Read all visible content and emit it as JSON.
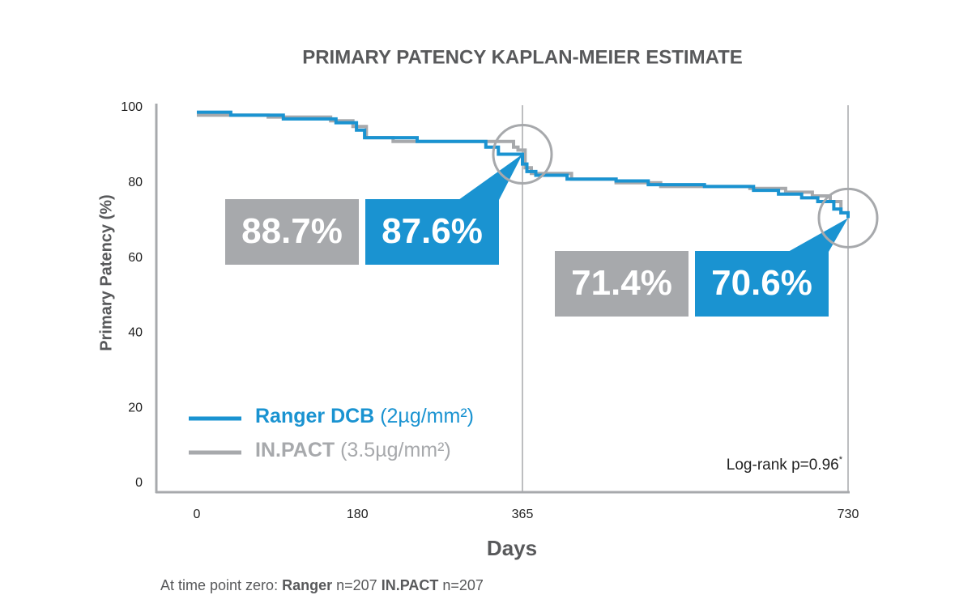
{
  "chart_data": {
    "type": "line",
    "step": true,
    "title": "PRIMARY PATENCY KAPLAN-MEIER ESTIMATE",
    "ylabel": "Primary Patency (%)",
    "xlabel": "Days",
    "xlim": [
      0,
      730
    ],
    "xticks": [
      0,
      180,
      365,
      730
    ],
    "ylim": [
      0,
      100
    ],
    "yticks": [
      0,
      20,
      40,
      60,
      80,
      100
    ],
    "series": [
      {
        "name": "IN.PACT",
        "dose": "(3.5µg/mm²)",
        "color": "#a7a9ac",
        "x": [
          0,
          80,
          80,
          150,
          150,
          175,
          175,
          190,
          190,
          220,
          220,
          355,
          355,
          360,
          360,
          368,
          368,
          375,
          375,
          420,
          420,
          470,
          470,
          520,
          520,
          620,
          620,
          660,
          660,
          690,
          690,
          710,
          710,
          722,
          722,
          730,
          730
        ],
        "values": [
          98,
          98,
          97.5,
          97.5,
          96.5,
          96.5,
          95,
          95,
          92,
          92,
          91,
          91,
          89.5,
          89.5,
          88.7,
          88.7,
          84,
          84,
          82.5,
          82.5,
          81,
          81,
          80,
          80,
          79,
          79,
          78.5,
          78.5,
          77.5,
          77.5,
          76.5,
          76.5,
          75,
          75,
          72,
          72,
          71.4
        ]
      },
      {
        "name": "Ranger DCB",
        "dose": "(2µg/mm²)",
        "color": "#1a93d1",
        "x": [
          0,
          38,
          38,
          97,
          97,
          156,
          156,
          179,
          179,
          188,
          188,
          247,
          247,
          324,
          324,
          338,
          338,
          365,
          365,
          370,
          370,
          380,
          380,
          415,
          415,
          470,
          470,
          506,
          506,
          569,
          569,
          624,
          624,
          652,
          652,
          678,
          678,
          696,
          696,
          714,
          714,
          722,
          722,
          730,
          730
        ],
        "values": [
          98.8,
          98.8,
          98,
          98,
          97,
          97,
          96,
          96,
          94,
          94,
          92,
          92,
          91,
          91,
          89.5,
          89.5,
          87.6,
          87.6,
          85,
          85,
          83,
          83,
          82,
          82,
          81,
          81,
          80.5,
          80.5,
          79.5,
          79.5,
          79,
          79,
          78,
          78,
          77,
          77,
          76,
          76,
          75,
          75,
          73,
          73,
          72,
          72,
          70.6
        ]
      }
    ],
    "callouts": [
      {
        "x": 365,
        "values": [
          88.7,
          87.6
        ],
        "value_labels": [
          "88.7%",
          "87.6%"
        ]
      },
      {
        "x": 730,
        "values": [
          71.4,
          70.6
        ],
        "value_labels": [
          "71.4%",
          "70.6%"
        ]
      }
    ],
    "note": "Log-rank p=0.96",
    "note_mark": "*",
    "footer": {
      "prefix": "At time point zero:",
      "groups": [
        {
          "name": "Ranger",
          "n": "n=207"
        },
        {
          "name": "IN.PACT",
          "n": "n=207"
        }
      ]
    }
  }
}
